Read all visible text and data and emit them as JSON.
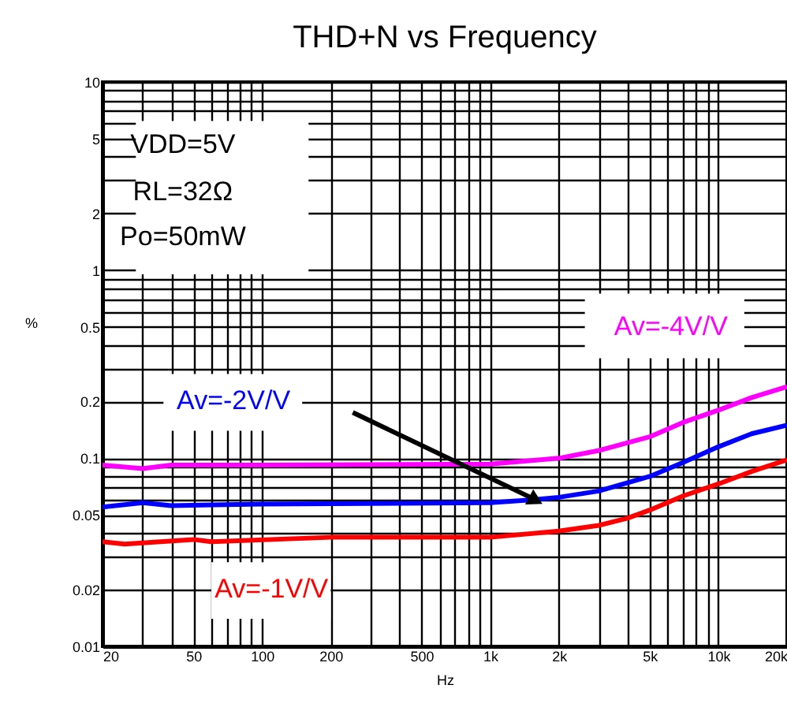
{
  "chart_data": {
    "type": "line",
    "title": "THD+N vs Frequency",
    "xlabel": "Hz",
    "ylabel": "%",
    "log": "xy",
    "grid": true,
    "legend": false,
    "xlim": [
      20,
      20000
    ],
    "ylim": [
      0.01,
      10
    ],
    "xticks": [
      20,
      {
        "value": 30,
        "label": null
      },
      {
        "value": 40,
        "label": null
      },
      50,
      {
        "value": 60,
        "label": null
      },
      {
        "value": 70,
        "label": null
      },
      {
        "value": 80,
        "label": null
      },
      {
        "value": 90,
        "label": null
      },
      100,
      200,
      {
        "value": 300,
        "label": null
      },
      {
        "value": 400,
        "label": null
      },
      500,
      {
        "value": 600,
        "label": null
      },
      {
        "value": 700,
        "label": null
      },
      {
        "value": 800,
        "label": null
      },
      {
        "value": 900,
        "label": null
      },
      {
        "value": 1000,
        "label": "1k"
      },
      {
        "value": 2000,
        "label": "2k"
      },
      {
        "value": 3000,
        "label": null
      },
      {
        "value": 4000,
        "label": null
      },
      {
        "value": 5000,
        "label": "5k"
      },
      {
        "value": 6000,
        "label": null
      },
      {
        "value": 7000,
        "label": null
      },
      {
        "value": 8000,
        "label": null
      },
      {
        "value": 9000,
        "label": null
      },
      {
        "value": 10000,
        "label": "10k"
      },
      {
        "value": 20000,
        "label": "20k"
      }
    ],
    "yticks": [
      0.01,
      0.02,
      {
        "value": 0.03,
        "label": null
      },
      {
        "value": 0.04,
        "label": null
      },
      0.05,
      {
        "value": 0.06,
        "label": null
      },
      {
        "value": 0.07,
        "label": null
      },
      {
        "value": 0.08,
        "label": null
      },
      {
        "value": 0.09,
        "label": null
      },
      0.1,
      0.2,
      {
        "value": 0.3,
        "label": null
      },
      {
        "value": 0.4,
        "label": null
      },
      0.5,
      {
        "value": 0.6,
        "label": null
      },
      {
        "value": 0.7,
        "label": null
      },
      {
        "value": 0.8,
        "label": null
      },
      {
        "value": 0.9,
        "label": null
      },
      1,
      2,
      {
        "value": 3,
        "label": null
      },
      {
        "value": 4,
        "label": null
      },
      5,
      {
        "value": 6,
        "label": null
      },
      {
        "value": 7,
        "label": null
      },
      {
        "value": 8,
        "label": null
      },
      {
        "value": 9,
        "label": null
      },
      10
    ],
    "annotations": [
      "VDD=5V",
      "RL=32Ω",
      "Po=50mW"
    ],
    "series": [
      {
        "name": "Av=-4V/V",
        "color": "#ff00ff",
        "x": [
          20,
          30,
          40,
          100,
          1000,
          2000,
          3000,
          5000,
          7000,
          10000,
          14000,
          20000
        ],
        "values": [
          0.092,
          0.088,
          0.092,
          0.092,
          0.093,
          0.1,
          0.11,
          0.13,
          0.155,
          0.18,
          0.21,
          0.24
        ]
      },
      {
        "name": "Av=-2V/V",
        "color": "#0000ff",
        "x": [
          20,
          30,
          40,
          100,
          1000,
          1500,
          2000,
          3000,
          5000,
          7000,
          10000,
          14000,
          20000
        ],
        "values": [
          0.055,
          0.058,
          0.056,
          0.057,
          0.058,
          0.06,
          0.062,
          0.067,
          0.08,
          0.095,
          0.115,
          0.135,
          0.15
        ]
      },
      {
        "name": "Av=-1V/V",
        "color": "#ff0000",
        "x": [
          20,
          25,
          50,
          60,
          200,
          1000,
          2000,
          3000,
          4000,
          5000,
          7000,
          10000,
          14000,
          20000
        ],
        "values": [
          0.036,
          0.035,
          0.037,
          0.036,
          0.038,
          0.038,
          0.041,
          0.044,
          0.048,
          0.053,
          0.063,
          0.073,
          0.085,
          0.098
        ]
      }
    ]
  }
}
